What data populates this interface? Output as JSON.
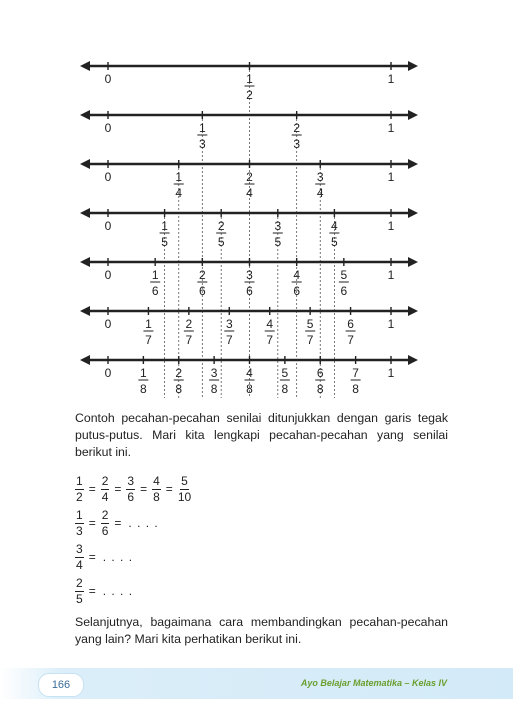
{
  "number_lines": [
    {
      "denominator": 2,
      "start_label": "0",
      "end_label": "1",
      "fractions": [
        {
          "num": "1",
          "den": "2"
        }
      ]
    },
    {
      "denominator": 3,
      "start_label": "0",
      "end_label": "1",
      "fractions": [
        {
          "num": "1",
          "den": "3"
        },
        {
          "num": "2",
          "den": "3"
        }
      ]
    },
    {
      "denominator": 4,
      "start_label": "0",
      "end_label": "1",
      "fractions": [
        {
          "num": "1",
          "den": "4"
        },
        {
          "num": "2",
          "den": "4"
        },
        {
          "num": "3",
          "den": "4"
        }
      ]
    },
    {
      "denominator": 5,
      "start_label": "0",
      "end_label": "1",
      "fractions": [
        {
          "num": "1",
          "den": "5"
        },
        {
          "num": "2",
          "den": "5"
        },
        {
          "num": "3",
          "den": "5"
        },
        {
          "num": "4",
          "den": "5"
        }
      ]
    },
    {
      "denominator": 6,
      "start_label": "0",
      "end_label": "1",
      "fractions": [
        {
          "num": "1",
          "den": "6"
        },
        {
          "num": "2",
          "den": "6"
        },
        {
          "num": "3",
          "den": "6"
        },
        {
          "num": "4",
          "den": "6"
        },
        {
          "num": "5",
          "den": "6"
        }
      ]
    },
    {
      "denominator": 7,
      "start_label": "0",
      "end_label": "1",
      "fractions": [
        {
          "num": "1",
          "den": "7"
        },
        {
          "num": "2",
          "den": "7"
        },
        {
          "num": "3",
          "den": "7"
        },
        {
          "num": "4",
          "den": "7"
        },
        {
          "num": "5",
          "den": "7"
        },
        {
          "num": "6",
          "den": "7"
        }
      ]
    },
    {
      "denominator": 8,
      "start_label": "0",
      "end_label": "1",
      "fractions": [
        {
          "num": "1",
          "den": "8"
        },
        {
          "num": "2",
          "den": "8"
        },
        {
          "num": "3",
          "den": "8"
        },
        {
          "num": "4",
          "den": "8"
        },
        {
          "num": "5",
          "den": "8"
        },
        {
          "num": "6",
          "den": "8"
        },
        {
          "num": "7",
          "den": "8"
        }
      ]
    }
  ],
  "paragraph1": "Contoh pecahan-pecahan senilai ditunjukkan dengan garis tegak putus-putus. Mari kita lengkapi pecahan-pecahan yang senilai berikut ini.",
  "equivalences": {
    "row1": {
      "f1n": "1",
      "f1d": "2",
      "f2n": "2",
      "f2d": "4",
      "f3n": "3",
      "f3d": "6",
      "f4n": "4",
      "f4d": "8",
      "f5n": "5",
      "f5d": "10"
    },
    "row2": {
      "f1n": "1",
      "f1d": "3",
      "f2n": "2",
      "f2d": "6",
      "blank": ". . . ."
    },
    "row3": {
      "f1n": "3",
      "f1d": "4",
      "blank": ". . . ."
    },
    "row4": {
      "f1n": "2",
      "f1d": "5",
      "blank": ". . . ."
    },
    "equals": "="
  },
  "paragraph2": "Selanjutnya, bagaimana cara membandingkan pecahan-pecahan yang lain? Mari kita perhatikan berikut ini.",
  "footer": {
    "page_number": "166",
    "book_title": "Ayo Belajar Matematika – Kelas IV"
  }
}
